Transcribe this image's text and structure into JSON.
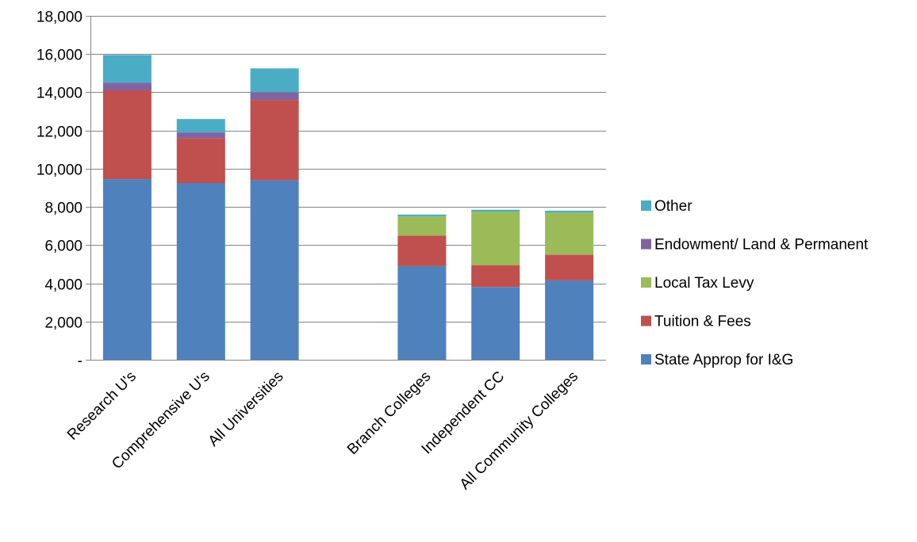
{
  "chart_data": {
    "type": "bar",
    "stacked": true,
    "title": "",
    "xlabel": "",
    "ylabel": "",
    "ylim": [
      0,
      18000
    ],
    "yticks": [
      0,
      2000,
      4000,
      6000,
      8000,
      10000,
      12000,
      14000,
      16000,
      18000
    ],
    "ytick_labels": [
      "-",
      "2,000",
      "4,000",
      "6,000",
      "8,000",
      "10,000",
      "12,000",
      "14,000",
      "16,000",
      "18,000"
    ],
    "grid": true,
    "legend_position": "right",
    "categories": [
      "Research U's",
      "Comprehensive U's",
      "All Universities",
      "",
      "Branch Colleges",
      "Independent CC",
      "All Community Colleges"
    ],
    "series": [
      {
        "name": "State Approp for I&G",
        "color": "#4F81BD",
        "values": [
          9450,
          9250,
          9400,
          null,
          4900,
          3800,
          4150
        ]
      },
      {
        "name": "Tuition & Fees",
        "color": "#C0504D",
        "values": [
          4650,
          2350,
          4200,
          null,
          1600,
          1150,
          1350
        ]
      },
      {
        "name": "Local Tax Levy",
        "color": "#9BBB59",
        "values": [
          0,
          0,
          0,
          null,
          1000,
          2800,
          2200
        ]
      },
      {
        "name": "Endowment/ Land & Permanent",
        "color": "#8064A2",
        "values": [
          400,
          300,
          400,
          null,
          0,
          0,
          0
        ]
      },
      {
        "name": "Other",
        "color": "#4BACC6",
        "values": [
          1450,
          700,
          1250,
          null,
          100,
          100,
          100
        ]
      }
    ],
    "legend_order": [
      "Other",
      "Endowment/ Land & Permanent",
      "Local Tax Levy",
      "Tuition & Fees",
      "State Approp for I&G"
    ]
  }
}
